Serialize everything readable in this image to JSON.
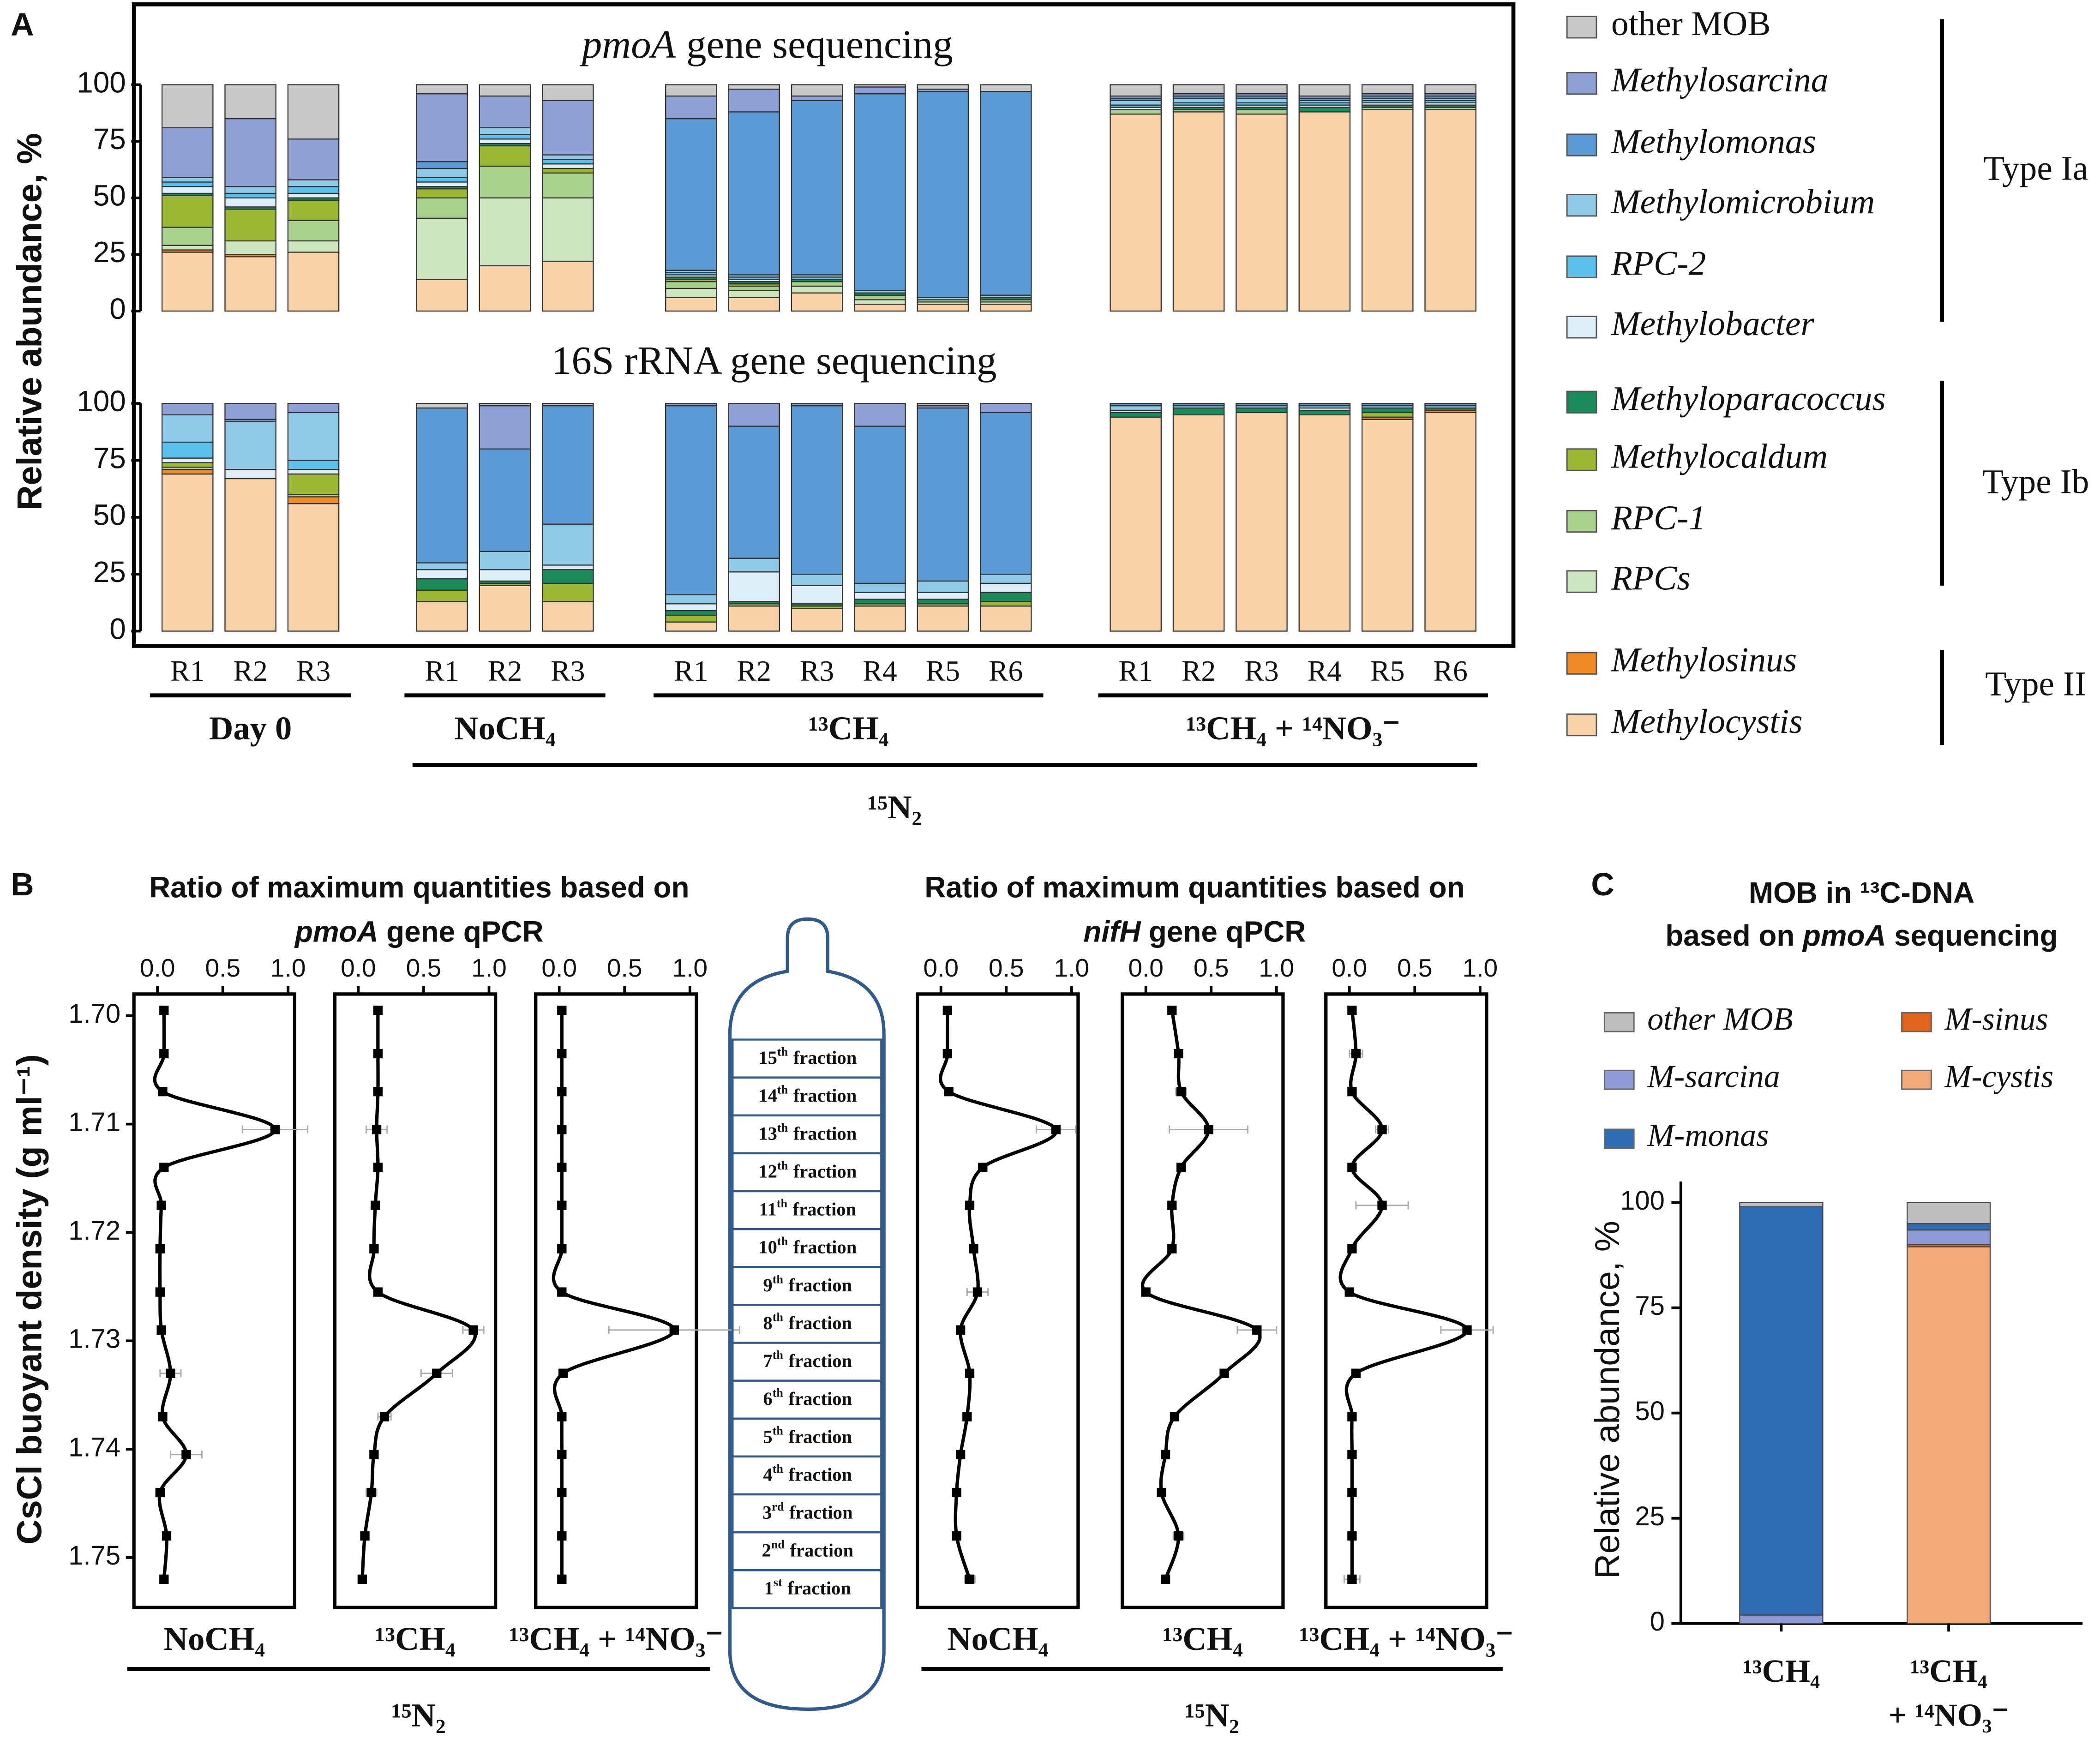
{
  "chart_data": [
    {
      "type": "bar",
      "stacked": true,
      "label": "A",
      "ylabel": "Relative abundance, %",
      "title": {
        "italic": "pmoA",
        "rest": "gene sequencing"
      },
      "ylim": [
        0,
        100
      ],
      "yticks": [
        0,
        25,
        50,
        75,
        100
      ],
      "legend_groups": [
        "Type Ia",
        "Type Ib",
        "Type II"
      ],
      "series": [
        {
          "name": "other MOB",
          "color": "#c8c8c8",
          "italic": false,
          "values": [
            19,
            15,
            24,
            4,
            5,
            7,
            5,
            2,
            5,
            1,
            2,
            3,
            5,
            4,
            4,
            5,
            4,
            4
          ]
        },
        {
          "name": "Methylosarcina",
          "color": "#8ea0d6",
          "italic": true,
          "values": [
            22,
            30,
            18,
            30,
            14,
            24,
            10,
            10,
            2,
            3,
            1,
            0,
            1,
            1,
            1,
            1,
            1,
            1
          ]
        },
        {
          "name": "Methylomonas",
          "color": "#5b9bd5",
          "italic": true,
          "values": [
            0,
            0,
            0,
            3,
            0,
            0,
            67,
            72,
            77,
            87,
            91,
            90,
            1,
            1,
            1,
            1,
            1,
            1
          ]
        },
        {
          "name": "Methylomicrobium",
          "color": "#8fcbe8",
          "italic": true,
          "values": [
            2,
            3,
            3,
            4,
            3,
            2,
            1,
            1,
            1,
            1,
            1,
            1,
            2,
            2,
            2,
            1,
            1,
            1
          ]
        },
        {
          "name": "RPC-2",
          "color": "#5bc0eb",
          "italic": true,
          "values": [
            2,
            2,
            3,
            2,
            2,
            2,
            1,
            1,
            1,
            0,
            0,
            0,
            1,
            1,
            1,
            1,
            1,
            1
          ]
        },
        {
          "name": "Methylobacter",
          "color": "#ddeef8",
          "italic": true,
          "values": [
            3,
            4,
            2,
            2,
            2,
            2,
            1,
            1,
            0,
            0,
            0,
            0,
            1,
            1,
            1,
            1,
            1,
            1
          ]
        },
        {
          "name": "Methyloparacoccus",
          "color": "#1a8a5a",
          "italic": true,
          "values": [
            1,
            1,
            1,
            1,
            1,
            0,
            1,
            1,
            1,
            1,
            0,
            1,
            0,
            1,
            1,
            2,
            1,
            1
          ]
        },
        {
          "name": "Methylocaldum",
          "color": "#9ab833",
          "italic": true,
          "values": [
            14,
            14,
            9,
            4,
            9,
            2,
            1,
            1,
            0,
            0,
            0,
            0,
            0,
            0,
            0,
            0,
            0,
            0
          ]
        },
        {
          "name": "RPC-1",
          "color": "#a9d18e",
          "italic": true,
          "values": [
            8,
            0,
            9,
            9,
            14,
            11,
            3,
            2,
            2,
            2,
            1,
            1,
            2,
            1,
            2,
            0,
            1,
            1
          ]
        },
        {
          "name": "RPCs",
          "color": "#cde6bf",
          "italic": true,
          "values": [
            2,
            6,
            5,
            27,
            30,
            28,
            4,
            3,
            3,
            2,
            1,
            1,
            0,
            0,
            0,
            0,
            0,
            0
          ]
        },
        {
          "name": "Methylosinus",
          "color": "#f08a24",
          "italic": true,
          "values": [
            1,
            1,
            0,
            0,
            0,
            0,
            0,
            0,
            0,
            0,
            0,
            0,
            0,
            0,
            0,
            0,
            0,
            0
          ]
        },
        {
          "name": "Methylocystis",
          "color": "#f9d2a8",
          "italic": true,
          "values": [
            26,
            24,
            26,
            14,
            20,
            22,
            6,
            6,
            8,
            3,
            3,
            3,
            87,
            88,
            87,
            88,
            89,
            89
          ]
        }
      ]
    },
    {
      "type": "bar",
      "stacked": true,
      "title": "16S rRNA gene sequencing",
      "ylim": [
        0,
        100
      ],
      "yticks": [
        0,
        25,
        50,
        75,
        100
      ],
      "categories": [
        "R1",
        "R2",
        "R3",
        "R1",
        "R2",
        "R3",
        "R1",
        "R2",
        "R3",
        "R4",
        "R5",
        "R6",
        "R1",
        "R2",
        "R3",
        "R4",
        "R5",
        "R6"
      ],
      "groups": [
        "Day 0",
        "NoCH₄",
        "¹³CH₄",
        "¹³CH₄ + ¹⁴NO₃⁻"
      ],
      "treatment": "¹⁵N₂",
      "series": [
        {
          "values": [
            0,
            0,
            0,
            2,
            1,
            1,
            0,
            0,
            0,
            0,
            1,
            0,
            0,
            0,
            0,
            0,
            0,
            0
          ]
        },
        {
          "values": [
            5,
            7,
            4,
            0,
            19,
            0,
            1,
            10,
            1,
            10,
            1,
            4,
            0,
            0,
            0,
            0,
            0,
            0
          ]
        },
        {
          "values": [
            0,
            1,
            0,
            68,
            45,
            52,
            83,
            58,
            74,
            69,
            76,
            71,
            1,
            1,
            1,
            1,
            1,
            1
          ]
        },
        {
          "values": [
            12,
            21,
            21,
            3,
            8,
            18,
            4,
            6,
            5,
            4,
            5,
            4,
            2,
            1,
            1,
            1,
            1,
            1
          ]
        },
        {
          "values": [
            7,
            0,
            4,
            0,
            0,
            0,
            0,
            0,
            0,
            0,
            0,
            0,
            0,
            0,
            0,
            0,
            0,
            0
          ]
        },
        {
          "values": [
            2,
            4,
            2,
            4,
            5,
            2,
            3,
            13,
            8,
            3,
            3,
            4,
            1,
            0,
            0,
            1,
            0,
            0
          ]
        },
        {
          "values": [
            0,
            0,
            0,
            5,
            1,
            6,
            2,
            1,
            1,
            2,
            2,
            4,
            2,
            3,
            2,
            2,
            2,
            1
          ]
        },
        {
          "values": [
            2,
            0,
            9,
            5,
            1,
            8,
            3,
            1,
            1,
            1,
            1,
            2,
            0,
            0,
            0,
            0,
            2,
            0
          ]
        },
        {
          "values": [
            1,
            0,
            1,
            0,
            0,
            0,
            0,
            0,
            0,
            0,
            0,
            0,
            0,
            0,
            0,
            0,
            0,
            0
          ]
        },
        {
          "values": [
            0,
            0,
            0,
            0,
            0,
            0,
            0,
            0,
            0,
            0,
            0,
            0,
            0,
            0,
            0,
            0,
            0,
            0
          ]
        },
        {
          "values": [
            2,
            0,
            3,
            0,
            0,
            0,
            0,
            0,
            0,
            0,
            0,
            0,
            0,
            0,
            0,
            0,
            1,
            1
          ]
        },
        {
          "values": [
            69,
            67,
            56,
            13,
            20,
            13,
            4,
            11,
            10,
            11,
            11,
            11,
            94,
            95,
            96,
            95,
            93,
            96
          ]
        }
      ]
    },
    {
      "type": "line",
      "label": "B",
      "ylabel": "CsCl buoyant density (g ml⁻¹)",
      "title": {
        "line1": "Ratio of maximum quantities based on",
        "italic": "pmoA",
        "rest": "gene qPCR"
      },
      "xlim": [
        -0.18,
        1.05
      ],
      "xticks": [
        {
          "value": 0,
          "label": "0.0"
        },
        0.5,
        {
          "value": 1,
          "label": "1.0"
        }
      ],
      "ylim": [
        1.698,
        1.7546
      ],
      "yticks": [
        {
          "value": 1.7,
          "label": "1.70"
        },
        1.71,
        1.72,
        1.73,
        1.74,
        1.75
      ],
      "y": [
        1.6995,
        1.7035,
        1.707,
        1.7105,
        1.714,
        1.7175,
        1.7215,
        1.7255,
        1.729,
        1.733,
        1.737,
        1.7405,
        1.744,
        1.748,
        1.752
      ],
      "treatment": "¹⁵N₂",
      "panels": [
        {
          "name": "NoCH₄",
          "values": [
            0.05,
            0.05,
            0.04,
            0.9,
            0.05,
            0.03,
            0.02,
            0.02,
            0.03,
            0.1,
            0.04,
            0.22,
            0.02,
            0.07,
            0.05
          ],
          "errors": [
            0.02,
            0.02,
            0.02,
            0.25,
            0.02,
            0.01,
            0.01,
            0.01,
            0.01,
            0.08,
            0.02,
            0.12,
            0.02,
            0.03,
            0.02
          ]
        },
        {
          "name": "¹³CH₄",
          "values": [
            0.15,
            0.15,
            0.15,
            0.14,
            0.15,
            0.13,
            0.12,
            0.15,
            0.88,
            0.6,
            0.2,
            0.12,
            0.1,
            0.05,
            0.03
          ],
          "errors": [
            0.01,
            0.02,
            0.02,
            0.08,
            0.02,
            0.01,
            0.01,
            0.02,
            0.08,
            0.12,
            0.05,
            0.03,
            0.04,
            0.02,
            0.01
          ]
        },
        {
          "name": "¹³CH₄ + ¹⁴NO₃⁻",
          "values": [
            0.02,
            0.02,
            0.02,
            0.02,
            0.02,
            0.02,
            0.02,
            0.02,
            0.88,
            0.03,
            0.02,
            0.02,
            0.02,
            0.02,
            0.02
          ],
          "errors": [
            0.01,
            0.01,
            0.01,
            0.01,
            0.01,
            0.01,
            0.01,
            0.01,
            0.5,
            0.01,
            0.01,
            0.01,
            0.01,
            0.01,
            0.01
          ]
        }
      ]
    },
    {
      "type": "line",
      "title": {
        "line1": "Ratio of maximum quantities based on",
        "italic": "nifH",
        "rest": "gene qPCR"
      },
      "xlim": [
        -0.18,
        1.05
      ],
      "xticks": [
        {
          "value": 0,
          "label": "0.0"
        },
        0.5,
        {
          "value": 1,
          "label": "1.0"
        }
      ],
      "ylim": [
        1.698,
        1.7546
      ],
      "y": [
        1.6995,
        1.7035,
        1.707,
        1.7105,
        1.714,
        1.7175,
        1.7215,
        1.7255,
        1.729,
        1.733,
        1.737,
        1.7405,
        1.744,
        1.748,
        1.752
      ],
      "treatment": "¹⁵N₂",
      "panels": [
        {
          "name": "NoCH₄",
          "values": [
            0.05,
            0.05,
            0.06,
            0.88,
            0.32,
            0.22,
            0.25,
            0.28,
            0.15,
            0.22,
            0.2,
            0.15,
            0.12,
            0.12,
            0.22
          ],
          "errors": [
            0.02,
            0.02,
            0.02,
            0.15,
            0.03,
            0.03,
            0.02,
            0.08,
            0.02,
            0.02,
            0.02,
            0.02,
            0.02,
            0.02,
            0.04
          ]
        },
        {
          "name": "¹³CH₄",
          "values": [
            0.2,
            0.25,
            0.27,
            0.48,
            0.27,
            0.2,
            0.2,
            0.0,
            0.85,
            0.6,
            0.22,
            0.15,
            0.12,
            0.25,
            0.15
          ],
          "errors": [
            0.02,
            0.02,
            0.04,
            0.3,
            0.03,
            0.02,
            0.02,
            0.01,
            0.15,
            0.03,
            0.02,
            0.02,
            0.02,
            0.04,
            0.02
          ]
        },
        {
          "name": "¹³CH₄ + ¹⁴NO₃⁻",
          "values": [
            0.02,
            0.05,
            0.02,
            0.25,
            0.02,
            0.25,
            0.02,
            0.0,
            0.9,
            0.05,
            0.02,
            0.02,
            0.02,
            0.02,
            0.02
          ],
          "errors": [
            0.01,
            0.05,
            0.01,
            0.05,
            0.01,
            0.2,
            0.01,
            0.01,
            0.2,
            0.02,
            0.01,
            0.01,
            0.01,
            0.01,
            0.06
          ]
        }
      ]
    },
    {
      "type": "bar",
      "stacked": true,
      "label": "C",
      "title": {
        "line1": "MOB in ¹³C-DNA",
        "pre": "based on",
        "italic": "pmoA",
        "rest": "sequencing"
      },
      "ylabel": "Relative abundance, %",
      "ylim": [
        0,
        105
      ],
      "yticks": [
        0,
        25,
        50,
        75,
        100
      ],
      "categories": [
        [
          "¹³CH₄"
        ],
        [
          "¹³CH₄",
          "+ ¹⁴NO₃⁻"
        ]
      ],
      "series": [
        {
          "name": "M-cystis",
          "color": "#f4aa78",
          "values": [
            0,
            89.5
          ]
        },
        {
          "name": "M-sinus",
          "color": "#e0641c",
          "values": [
            0,
            0.5
          ]
        },
        {
          "name": "M-sarcina",
          "color": "#8e9bd6",
          "values": [
            2,
            3.5
          ]
        },
        {
          "name": "M-monas",
          "color": "#2e6db4",
          "values": [
            97,
            1.5
          ]
        },
        {
          "name": "other MOB",
          "color": "#bdbdbd",
          "values": [
            1,
            5
          ]
        }
      ]
    }
  ],
  "tube": {
    "fractions": [
      {
        "n": "15",
        "sup": "th",
        "word": "fraction"
      },
      {
        "n": "14",
        "sup": "th",
        "word": "fraction"
      },
      {
        "n": "13",
        "sup": "th",
        "word": "fraction"
      },
      {
        "n": "12",
        "sup": "th",
        "word": "fraction"
      },
      {
        "n": "11",
        "sup": "th",
        "word": "fraction"
      },
      {
        "n": "10",
        "sup": "th",
        "word": "fraction"
      },
      {
        "n": "9",
        "sup": "th",
        "word": "fraction"
      },
      {
        "n": "8",
        "sup": "th",
        "word": "fraction"
      },
      {
        "n": "7",
        "sup": "th",
        "word": "fraction"
      },
      {
        "n": "6",
        "sup": "th",
        "word": "fraction"
      },
      {
        "n": "5",
        "sup": "th",
        "word": "fraction"
      },
      {
        "n": "4",
        "sup": "th",
        "word": "fraction"
      },
      {
        "n": "3",
        "sup": "rd",
        "word": "fraction"
      },
      {
        "n": "2",
        "sup": "nd",
        "word": "fraction"
      },
      {
        "n": "1",
        "sup": "st",
        "word": "fraction"
      }
    ]
  }
}
